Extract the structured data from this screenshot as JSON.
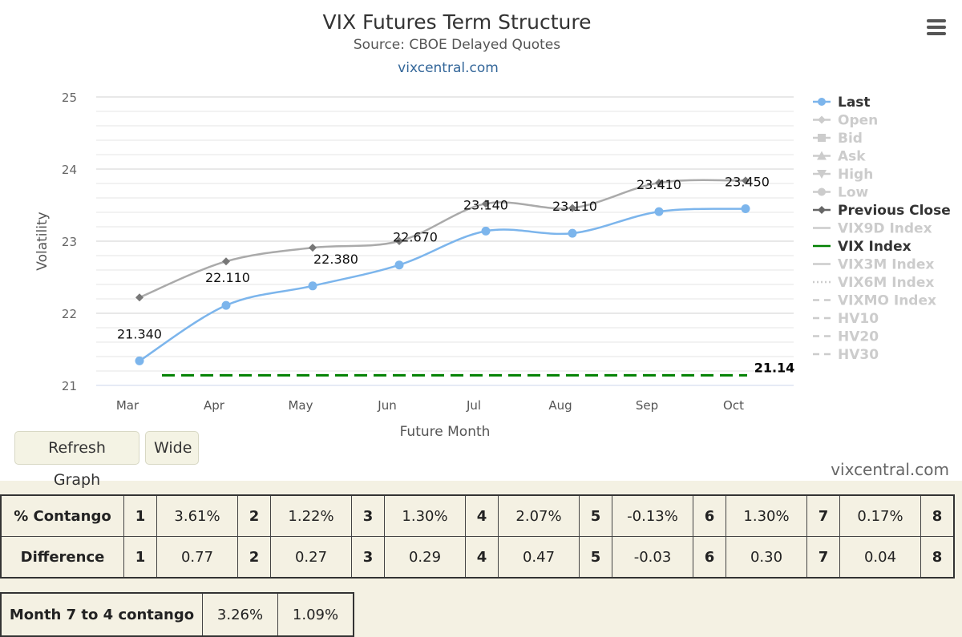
{
  "chart": {
    "title": "VIX Futures Term Structure",
    "subtitle": "Source: CBOE Delayed Quotes",
    "credit_link": "vixcentral.com"
  },
  "chart_data": {
    "type": "line",
    "title": "VIX Futures Term Structure",
    "subtitle": "Source: CBOE Delayed Quotes",
    "xlabel": "Future Month",
    "ylabel": "Volatility",
    "categories": [
      "Mar",
      "Apr",
      "May",
      "Jun",
      "Jul",
      "Aug",
      "Sep",
      "Oct"
    ],
    "ylim": [
      21,
      25
    ],
    "yticks": [
      21,
      22,
      23,
      24,
      25
    ],
    "grid": true,
    "legend_position": "right",
    "series": [
      {
        "name": "Last",
        "values": [
          21.34,
          22.11,
          22.38,
          22.67,
          23.14,
          23.11,
          23.41,
          23.45
        ],
        "labels": [
          "21.340",
          "22.110",
          "22.380",
          "22.670",
          "23.140",
          "23.110",
          "23.410",
          "23.450"
        ],
        "color": "#7cb5ec",
        "marker": "circle",
        "visible": true
      },
      {
        "name": "Previous Close",
        "values": [
          22.22,
          22.72,
          22.91,
          23.0,
          23.52,
          23.46,
          23.81,
          23.84
        ],
        "color": "#aaaaaa",
        "marker": "diamond",
        "visible": true
      },
      {
        "name": "VIX Index",
        "values": [
          21.14,
          21.14,
          21.14,
          21.14,
          21.14,
          21.14,
          21.14,
          21.14
        ],
        "end_label": "21.14",
        "color": "#008000",
        "dash": "dash",
        "visible": true
      }
    ],
    "legend": [
      {
        "name": "Last",
        "active": true,
        "symbol": "circle-line",
        "color": "#7cb5ec"
      },
      {
        "name": "Open",
        "active": false,
        "symbol": "diamond-line"
      },
      {
        "name": "Bid",
        "active": false,
        "symbol": "square-line"
      },
      {
        "name": "Ask",
        "active": false,
        "symbol": "triangle-line"
      },
      {
        "name": "High",
        "active": false,
        "symbol": "triangle-down-line"
      },
      {
        "name": "Low",
        "active": false,
        "symbol": "circle-line"
      },
      {
        "name": "Previous Close",
        "active": true,
        "symbol": "diamond-line",
        "color": "#666666"
      },
      {
        "name": "VIX9D Index",
        "active": false,
        "symbol": "line"
      },
      {
        "name": "VIX Index",
        "active": true,
        "symbol": "line",
        "color": "#008000"
      },
      {
        "name": "VIX3M Index",
        "active": false,
        "symbol": "line"
      },
      {
        "name": "VIX6M Index",
        "active": false,
        "symbol": "dotted-line"
      },
      {
        "name": "VIXMO Index",
        "active": false,
        "symbol": "dashed-line"
      },
      {
        "name": "HV10",
        "active": false,
        "symbol": "dashed-line"
      },
      {
        "name": "HV20",
        "active": false,
        "symbol": "dashed-line"
      },
      {
        "name": "HV30",
        "active": false,
        "symbol": "dashed-line"
      }
    ]
  },
  "buttons": {
    "refresh_label": "Refresh Graph",
    "wide_label": "Wide"
  },
  "watermark": "vixcentral.com",
  "contango_table": {
    "rows": [
      {
        "label": "% Contango",
        "cells": [
          [
            "1",
            "3.61%"
          ],
          [
            "2",
            "1.22%"
          ],
          [
            "3",
            "1.30%"
          ],
          [
            "4",
            "2.07%"
          ],
          [
            "5",
            "-0.13%"
          ],
          [
            "6",
            "1.30%"
          ],
          [
            "7",
            "0.17%"
          ],
          [
            "8",
            ""
          ]
        ]
      },
      {
        "label": "Difference",
        "cells": [
          [
            "1",
            "0.77"
          ],
          [
            "2",
            "0.27"
          ],
          [
            "3",
            "0.29"
          ],
          [
            "4",
            "0.47"
          ],
          [
            "5",
            "-0.03"
          ],
          [
            "6",
            "0.30"
          ],
          [
            "7",
            "0.04"
          ],
          [
            "8",
            ""
          ]
        ]
      }
    ]
  },
  "month_table": {
    "label": "Month 7 to 4 contango",
    "values": [
      "3.26%",
      "1.09%"
    ]
  },
  "icons": {
    "menu": "hamburger-menu-icon"
  }
}
